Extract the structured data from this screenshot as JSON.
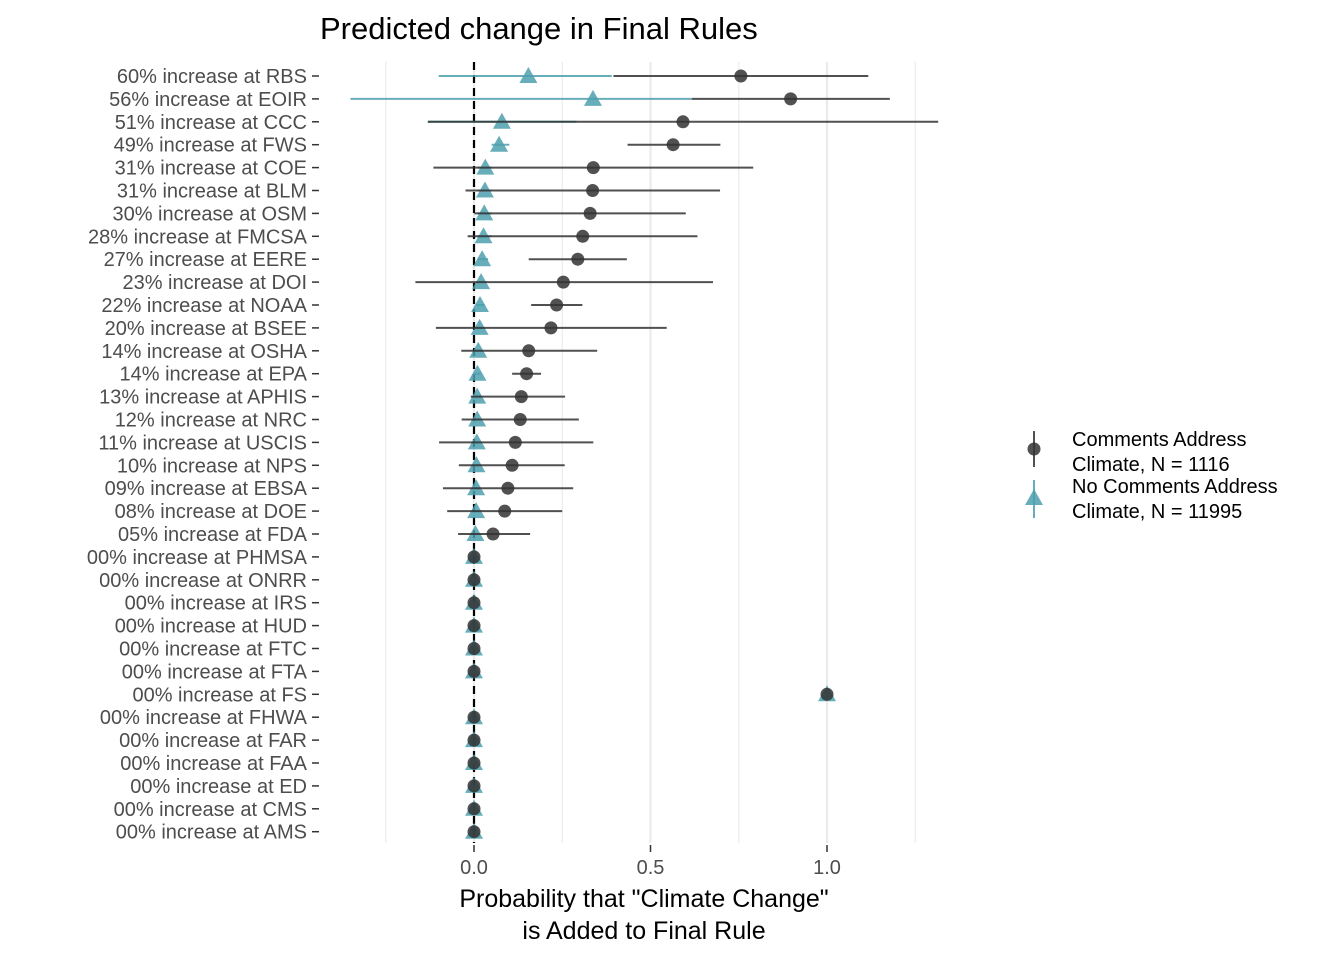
{
  "chart_data": {
    "type": "scatter",
    "title": "Predicted change in Final Rules",
    "xlabel_lines": [
      "Probability that \"Climate Change\"",
      "is Added to Final Rule"
    ],
    "ylabel": "",
    "xlim": [
      -0.42,
      1.38
    ],
    "x_ticks": [
      0.0,
      0.5,
      1.0
    ],
    "x_tick_labels": [
      "0.0",
      "0.5",
      "1.0"
    ],
    "minor_gridlines": [
      -0.25,
      0.25,
      0.75,
      1.25
    ],
    "reference_line": {
      "x": 0.0,
      "style": "dashed"
    },
    "grid": true,
    "legend_position": "right",
    "colors": {
      "comments": "#333333",
      "no_comments": "#4e9fae",
      "grid": "#ebebeb",
      "axis_text": "#4d4d4d"
    },
    "categories": [
      "60% increase at RBS",
      "56% increase at EOIR",
      "51% increase at CCC",
      "49% increase at FWS",
      "31% increase at COE",
      "31% increase at BLM",
      "30% increase at OSM",
      "28% increase at FMCSA",
      "27% increase at EERE",
      "23% increase at DOI",
      "22% increase at NOAA",
      "20% increase at BSEE",
      "14% increase at OSHA",
      "14% increase at EPA",
      "13% increase at APHIS",
      "12% increase at NRC",
      "11% increase at USCIS",
      "10% increase at NPS",
      "09% increase at EBSA",
      "08% increase at DOE",
      "05% increase at FDA",
      "00% increase at PHMSA",
      "00% increase at ONRR",
      "00% increase at IRS",
      "00% increase at HUD",
      "00% increase at FTC",
      "00% increase at FTA",
      "00% increase at FS",
      "00% increase at FHWA",
      "00% increase at FAR",
      "00% increase at FAA",
      "00% increase at ED",
      "00% increase at CMS",
      "00% increase at AMS"
    ],
    "series": [
      {
        "name": "Comments Address Climate, N = 1116",
        "legend_lines": [
          "Comments Address",
          "Climate, N = 1116"
        ],
        "marker": "circle",
        "values": [
          0.756,
          0.897,
          0.592,
          0.564,
          0.338,
          0.336,
          0.329,
          0.308,
          0.294,
          0.253,
          0.234,
          0.218,
          0.155,
          0.149,
          0.134,
          0.131,
          0.117,
          0.108,
          0.096,
          0.087,
          0.054,
          0.0,
          0.0,
          0.0,
          0.0,
          0.0,
          0.0,
          1.0,
          0.0,
          0.0,
          0.0,
          0.0,
          0.0,
          0.0
        ],
        "lower": [
          0.395,
          0.616,
          -0.131,
          0.435,
          -0.115,
          -0.024,
          0.001,
          -0.018,
          0.155,
          -0.166,
          0.162,
          -0.108,
          -0.036,
          0.108,
          -0.009,
          -0.035,
          -0.099,
          -0.043,
          -0.088,
          -0.076,
          -0.045,
          0.0,
          0.0,
          0.0,
          0.0,
          0.0,
          0.0,
          1.0,
          0.0,
          0.0,
          0.0,
          0.0,
          0.0,
          0.0
        ],
        "upper": [
          1.117,
          1.178,
          1.315,
          0.698,
          0.791,
          0.697,
          0.6,
          0.633,
          0.433,
          0.677,
          0.307,
          0.546,
          0.349,
          0.19,
          0.258,
          0.297,
          0.338,
          0.257,
          0.281,
          0.25,
          0.159,
          0.0,
          0.0,
          0.0,
          0.0,
          0.0,
          0.0,
          1.0,
          0.0,
          0.0,
          0.0,
          0.0,
          0.0,
          0.0
        ]
      },
      {
        "name": "No Comments Address Climate, N = 11995",
        "legend_lines": [
          "No Comments Address",
          "Climate, N = 11995"
        ],
        "marker": "triangle",
        "values": [
          0.154,
          0.337,
          0.079,
          0.071,
          0.032,
          0.031,
          0.029,
          0.027,
          0.023,
          0.02,
          0.017,
          0.016,
          0.012,
          0.01,
          0.009,
          0.009,
          0.008,
          0.007,
          0.006,
          0.006,
          0.004,
          0.0,
          0.0,
          0.0,
          0.0,
          0.0,
          0.0,
          1.0,
          0.0,
          0.0,
          0.0,
          0.0,
          0.0,
          0.0
        ],
        "lower": [
          -0.1,
          -0.35,
          -0.13,
          0.05,
          0.01,
          0.01,
          0.01,
          0.01,
          0.01,
          0.005,
          0.005,
          0.005,
          0.0,
          0.0,
          0.0,
          0.0,
          0.0,
          0.0,
          0.0,
          0.0,
          0.0,
          0.0,
          0.0,
          0.0,
          0.0,
          0.0,
          0.0,
          1.0,
          0.0,
          0.0,
          0.0,
          0.0,
          0.0,
          0.0
        ],
        "upper": [
          0.39,
          0.615,
          0.29,
          0.1,
          0.05,
          0.05,
          0.05,
          0.05,
          0.04,
          0.035,
          0.03,
          0.03,
          0.025,
          0.02,
          0.02,
          0.02,
          0.02,
          0.015,
          0.015,
          0.015,
          0.01,
          0.0,
          0.0,
          0.0,
          0.0,
          0.0,
          0.0,
          1.0,
          0.0,
          0.0,
          0.0,
          0.0,
          0.0,
          0.0
        ]
      }
    ]
  }
}
